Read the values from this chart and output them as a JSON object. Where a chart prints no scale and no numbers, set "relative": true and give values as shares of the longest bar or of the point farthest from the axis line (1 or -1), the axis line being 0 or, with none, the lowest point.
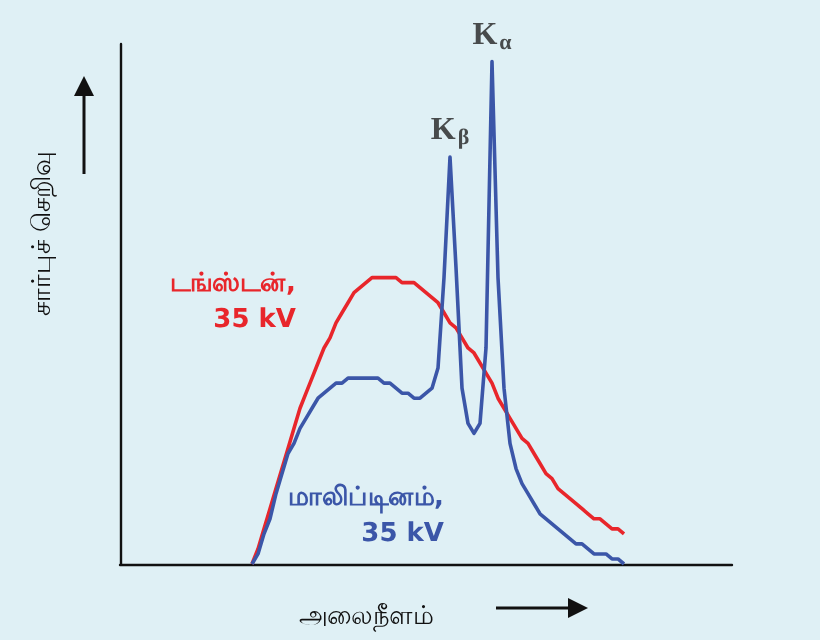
{
  "chart_data": {
    "type": "line",
    "relative": true,
    "xlabel": "அலைநீளம்",
    "ylabel": "சார்புச் செறிவு",
    "categories": [
      null,
      null,
      null,
      null,
      null,
      null,
      null,
      null,
      null,
      null,
      null,
      null,
      null,
      null,
      null,
      null,
      null,
      null,
      null,
      null,
      null,
      null,
      null,
      null,
      null,
      null,
      null,
      null,
      null,
      null,
      null,
      null,
      null,
      null,
      null,
      null,
      null,
      null,
      null,
      null,
      null,
      null,
      null,
      null,
      null,
      null,
      null,
      null,
      null,
      null,
      null,
      null,
      null,
      null,
      null,
      null,
      null,
      null,
      null,
      null,
      null,
      null,
      null,
      null,
      null,
      null,
      null,
      null,
      null,
      null,
      null,
      null,
      null,
      null,
      null,
      null,
      null,
      null,
      null,
      null,
      null,
      null,
      null,
      null,
      null,
      null,
      null,
      null,
      null,
      null,
      null,
      null,
      null,
      null,
      null,
      null,
      null,
      null,
      null,
      null,
      null,
      null,
      null
    ],
    "series": [
      {
        "name": "டங்ஸ்டன், 35 kV",
        "color": "#e8262b",
        "values": [
          null,
          null,
          null,
          null,
          null,
          null,
          null,
          null,
          null,
          null,
          null,
          null,
          null,
          null,
          null,
          null,
          null,
          null,
          null,
          null,
          null,
          null,
          0,
          0.03,
          0.07,
          0.11,
          0.15,
          0.19,
          0.23,
          0.27,
          0.31,
          0.34,
          0.37,
          0.4,
          0.43,
          0.45,
          0.48,
          0.5,
          0.52,
          0.54,
          0.55,
          0.56,
          0.57,
          0.57,
          0.57,
          0.57,
          0.57,
          0.56,
          0.56,
          0.56,
          0.55,
          0.54,
          0.53,
          0.52,
          0.5,
          0.48,
          0.47,
          0.45,
          0.43,
          0.42,
          0.4,
          0.38,
          0.36,
          0.33,
          0.31,
          0.29,
          0.27,
          0.25,
          0.24,
          0.22,
          0.2,
          0.18,
          0.17,
          0.15,
          0.14,
          0.13,
          0.12,
          0.11,
          0.1,
          0.09,
          0.09,
          0.08,
          0.07,
          0.07,
          0.06,
          null,
          null,
          null,
          null,
          null,
          null,
          null,
          null,
          null,
          null,
          null,
          null,
          null,
          null,
          null,
          null,
          null,
          null
        ]
      },
      {
        "name": "மாலிப்டினம், 35 kV",
        "color": "#3b56a8",
        "values": [
          null,
          null,
          null,
          null,
          null,
          null,
          null,
          null,
          null,
          null,
          null,
          null,
          null,
          null,
          null,
          null,
          null,
          null,
          null,
          null,
          null,
          null,
          0,
          0.02,
          0.06,
          0.09,
          0.14,
          0.18,
          0.22,
          0.24,
          0.27,
          0.29,
          0.31,
          0.33,
          0.34,
          0.35,
          0.36,
          0.36,
          0.37,
          0.37,
          0.37,
          0.37,
          0.37,
          0.37,
          0.36,
          0.36,
          0.35,
          0.34,
          0.34,
          0.33,
          0.33,
          0.34,
          0.35,
          0.39,
          0.57,
          0.81,
          0.59,
          0.35,
          0.28,
          0.26,
          0.28,
          0.43,
          1,
          0.57,
          0.35,
          0.24,
          0.19,
          0.16,
          0.14,
          0.12,
          0.1,
          0.09,
          0.08,
          0.07,
          0.06,
          0.05,
          0.04,
          0.04,
          0.03,
          0.02,
          0.02,
          0.02,
          0.01,
          0.01,
          0,
          null,
          null,
          null,
          null,
          null,
          null,
          null,
          null,
          null,
          null,
          null,
          null,
          null,
          null,
          null,
          null,
          null,
          null
        ]
      }
    ],
    "annotations": [
      {
        "text": "K$_{β}$",
        "y": 0.81
      },
      {
        "text": "K$_{α}$",
        "y": 1
      }
    ]
  }
}
